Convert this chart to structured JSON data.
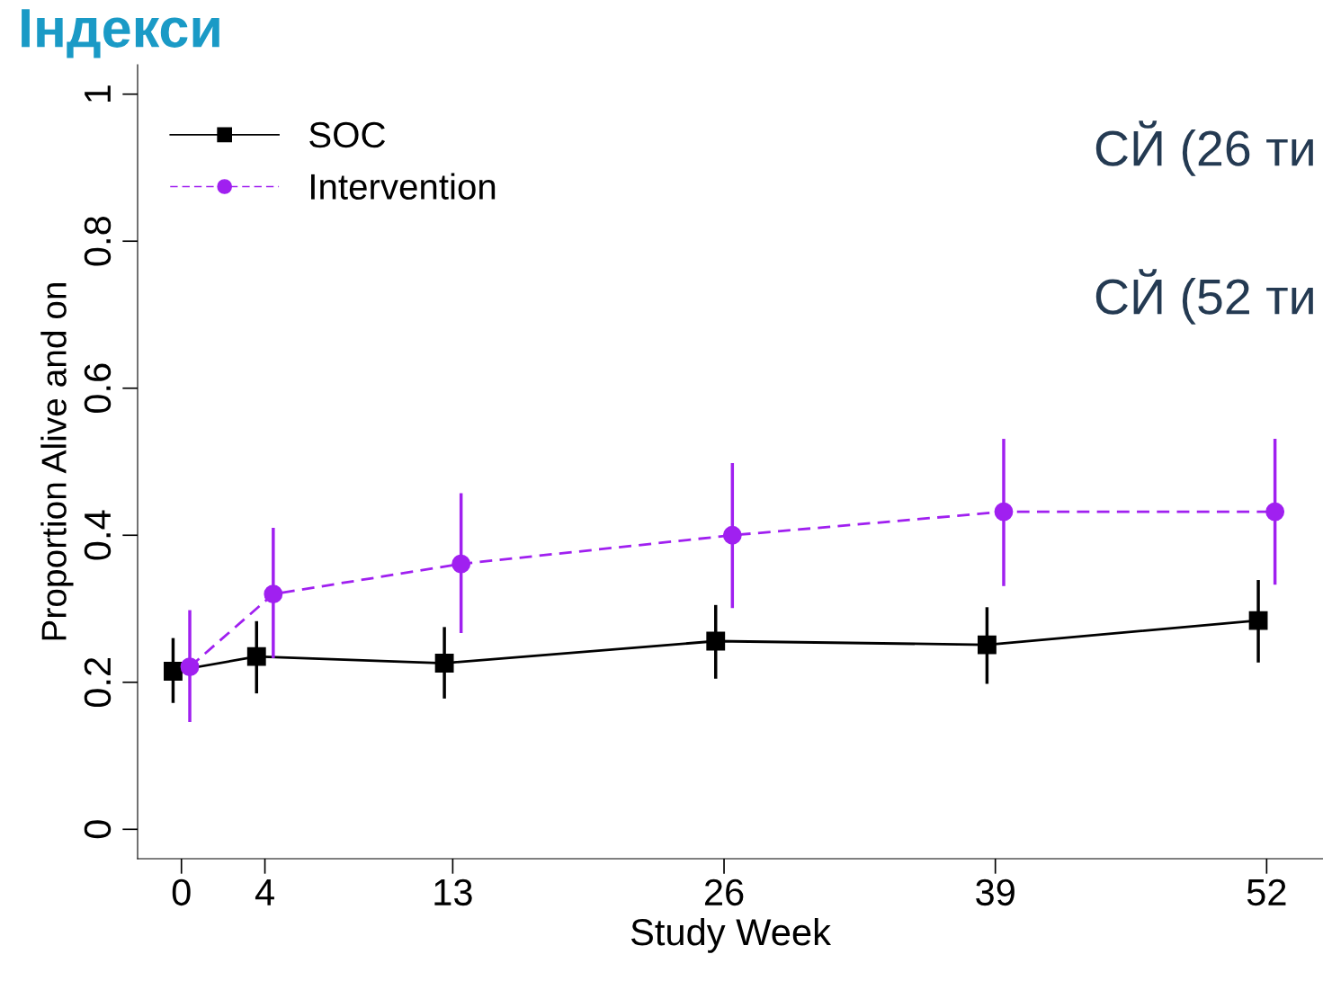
{
  "chart_data": {
    "type": "line",
    "title": "Індекси",
    "xlabel": "Study Week",
    "ylabel": "Proportion Alive and on",
    "annotations": [
      "СЙ (26 ти",
      "СЙ (52 ти"
    ],
    "xlim": [
      -2.1,
      54.7
    ],
    "xticks": [
      0,
      4,
      13,
      26,
      39,
      52
    ],
    "ylim": [
      -0.04,
      1.04
    ],
    "yticks": [
      0,
      0.2,
      0.4,
      0.6,
      0.8,
      1
    ],
    "grid": false,
    "legend": "top left",
    "series": [
      {
        "name": "SOC",
        "color": "#000000",
        "marker": "square",
        "line_style": "solid",
        "x": [
          -0.4,
          3.6,
          12.6,
          25.6,
          38.6,
          51.6
        ],
        "values": [
          0.215,
          0.235,
          0.226,
          0.256,
          0.251,
          0.284
        ],
        "errors": [
          [
            0.174,
            0.258
          ],
          [
            0.187,
            0.281
          ],
          [
            0.18,
            0.273
          ],
          [
            0.207,
            0.303
          ],
          [
            0.2,
            0.3
          ],
          [
            0.229,
            0.337
          ]
        ]
      },
      {
        "name": "Intervention",
        "color": "#a020f0",
        "marker": "circle",
        "line_style": "dashed",
        "x": [
          0.4,
          4.4,
          13.4,
          26.4,
          39.4,
          52.4
        ],
        "values": [
          0.221,
          0.32,
          0.361,
          0.4,
          0.432,
          0.432
        ],
        "errors": [
          [
            0.148,
            0.296
          ],
          [
            0.235,
            0.408
          ],
          [
            0.269,
            0.455
          ],
          [
            0.303,
            0.496
          ],
          [
            0.333,
            0.529
          ],
          [
            0.335,
            0.529
          ]
        ]
      }
    ]
  }
}
